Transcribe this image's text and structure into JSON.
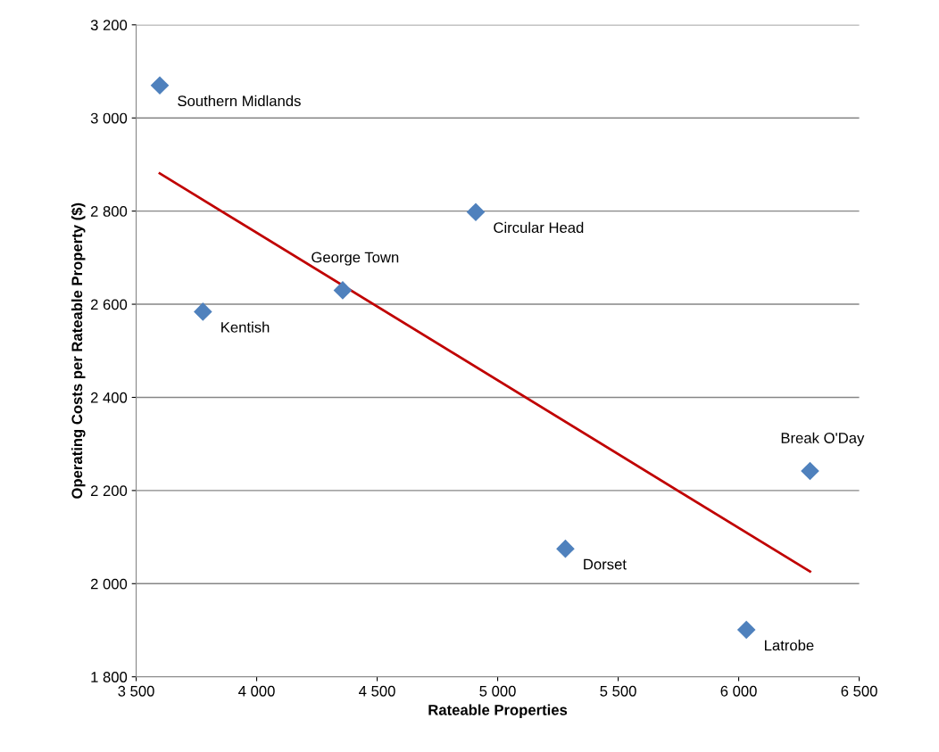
{
  "chart_data": {
    "type": "scatter",
    "xlabel": "Rateable Properties",
    "ylabel": "Operating Costs per Rateable Property ($)",
    "xlim": [
      3500,
      6500
    ],
    "ylim": [
      1800,
      3200
    ],
    "xticks": [
      {
        "value": 3500,
        "label": "3 500"
      },
      {
        "value": 4000,
        "label": "4 000"
      },
      {
        "value": 4500,
        "label": "4 500"
      },
      {
        "value": 5000,
        "label": "5 000"
      },
      {
        "value": 5500,
        "label": "5 500"
      },
      {
        "value": 6000,
        "label": "6 000"
      },
      {
        "value": 6500,
        "label": "6 500"
      }
    ],
    "yticks": [
      {
        "value": 1800,
        "label": "1 800"
      },
      {
        "value": 2000,
        "label": "2 000"
      },
      {
        "value": 2200,
        "label": "2 200"
      },
      {
        "value": 2400,
        "label": "2 400"
      },
      {
        "value": 2600,
        "label": "2 600"
      },
      {
        "value": 2800,
        "label": "2 800"
      },
      {
        "value": 3000,
        "label": "3 000"
      },
      {
        "value": 3200,
        "label": "3 200"
      }
    ],
    "grid": "y",
    "legend": false,
    "series": [
      {
        "color": "#4f81bd",
        "marker": "diamond",
        "x": [
          3598,
          3777,
          4357,
          4909,
          5281,
          6032,
          6296
        ],
        "values": [
          3070,
          2584,
          2630,
          2798,
          2075,
          1901,
          2242
        ]
      },
      {
        "type": "line",
        "color": "#c00000",
        "marker": "none",
        "line_style": "solid",
        "x": [
          3598,
          6296
        ],
        "values": [
          2881,
          2026
        ]
      }
    ],
    "annotations": [
      {
        "text": "Southern Midlands",
        "x": 3598,
        "y": 3070
      },
      {
        "text": "Kentish",
        "x": 3777,
        "y": 2584
      },
      {
        "text": "George Town",
        "x": 4357,
        "y": 2630
      },
      {
        "text": "Circular Head",
        "x": 4909,
        "y": 2798
      },
      {
        "text": "Dorset",
        "x": 5281,
        "y": 2075
      },
      {
        "text": "Latrobe",
        "x": 6032,
        "y": 1901
      },
      {
        "text": "Break O'Day",
        "x": 6296,
        "y": 2242
      }
    ]
  }
}
